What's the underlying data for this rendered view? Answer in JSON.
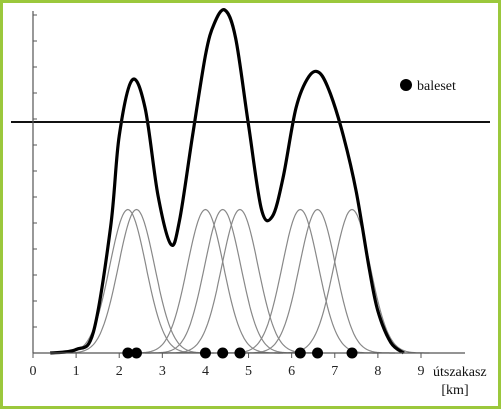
{
  "chart_data": {
    "type": "line",
    "xlim": [
      0,
      9.5
    ],
    "ylim": [
      0,
      1
    ],
    "x_ticks": [
      "0",
      "1",
      "2",
      "3",
      "4",
      "5",
      "6",
      "7",
      "8",
      "9"
    ],
    "xlabel_line1": "útszakasz",
    "xlabel_line2": "[km]",
    "legend": {
      "label": "baleset",
      "position": "top-right"
    },
    "accident_positions": [
      2.2,
      2.4,
      4.0,
      4.4,
      4.8,
      6.2,
      6.6,
      7.4
    ],
    "kernel_peak": 0.41,
    "kernel_sigma": 0.42,
    "threshold": 0.66,
    "series": [
      {
        "x": [
          0.4,
          1.0,
          1.4,
          1.8,
          2.0,
          2.3,
          2.6,
          2.9,
          3.2,
          3.4,
          3.7,
          4.0,
          4.2,
          4.45,
          4.7,
          5.0,
          5.3,
          5.55,
          5.8,
          6.1,
          6.4,
          6.65,
          6.9,
          7.2,
          7.5,
          7.8,
          8.0,
          8.3,
          8.6
        ],
        "y": [
          0.0,
          0.01,
          0.06,
          0.36,
          0.62,
          0.78,
          0.7,
          0.45,
          0.31,
          0.38,
          0.62,
          0.85,
          0.94,
          0.98,
          0.9,
          0.65,
          0.41,
          0.39,
          0.5,
          0.7,
          0.79,
          0.8,
          0.74,
          0.62,
          0.46,
          0.24,
          0.12,
          0.03,
          0.0
        ]
      }
    ]
  }
}
